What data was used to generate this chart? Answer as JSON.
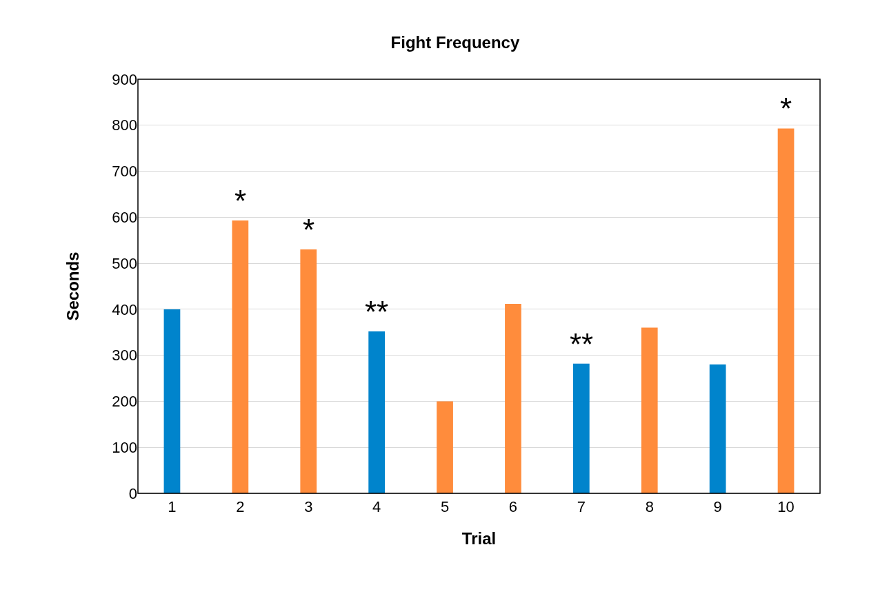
{
  "chart_data": {
    "type": "bar",
    "title": "Fight Frequency",
    "xlabel": "Trial",
    "ylabel": "Seconds",
    "categories": [
      "1",
      "2",
      "3",
      "4",
      "5",
      "6",
      "7",
      "8",
      "9",
      "10"
    ],
    "values": [
      400,
      593,
      530,
      352,
      200,
      412,
      282,
      360,
      280,
      793
    ],
    "colors": [
      "#0084cc",
      "#ff8c3c",
      "#ff8c3c",
      "#0084cc",
      "#ff8c3c",
      "#ff8c3c",
      "#0084cc",
      "#ff8c3c",
      "#0084cc",
      "#ff8c3c"
    ],
    "ylim": [
      0,
      900
    ],
    "yticks": [
      0,
      100,
      200,
      300,
      400,
      500,
      600,
      700,
      800,
      900
    ],
    "grid": "y",
    "legend": false,
    "annotations": [
      {
        "text": "*",
        "x": "2",
        "y": 593
      },
      {
        "text": "*",
        "x": "3",
        "y": 530
      },
      {
        "text": "**",
        "x": "4",
        "y": 352
      },
      {
        "text": "**",
        "x": "7",
        "y": 282
      },
      {
        "text": "*",
        "x": "10",
        "y": 793
      }
    ]
  }
}
